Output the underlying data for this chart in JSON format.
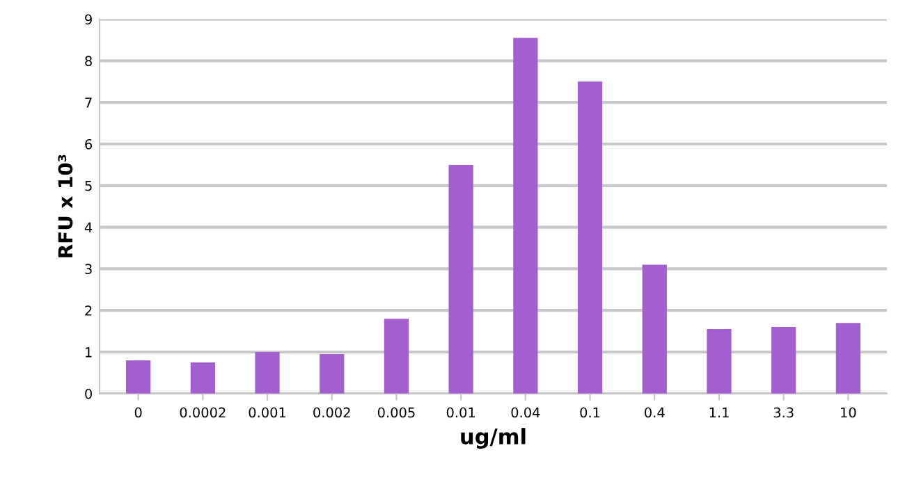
{
  "chart_data": {
    "type": "bar",
    "xlabel": "ug/ml",
    "ylabel": "RFU x 10³",
    "categories": [
      "0",
      "0.0002",
      "0.001",
      "0.002",
      "0.005",
      "0.01",
      "0.04",
      "0.1",
      "0.4",
      "1.1",
      "3.3",
      "10"
    ],
    "series": [
      {
        "color": "#a35fd0",
        "values": [
          0.8,
          0.75,
          1.0,
          0.95,
          1.8,
          5.5,
          8.55,
          7.5,
          3.1,
          1.55,
          1.6,
          1.7
        ]
      }
    ],
    "ylim": [
      0,
      9
    ],
    "yticks": [
      0,
      1,
      2,
      3,
      4,
      5,
      6,
      7,
      8,
      9
    ],
    "grid": "y"
  }
}
